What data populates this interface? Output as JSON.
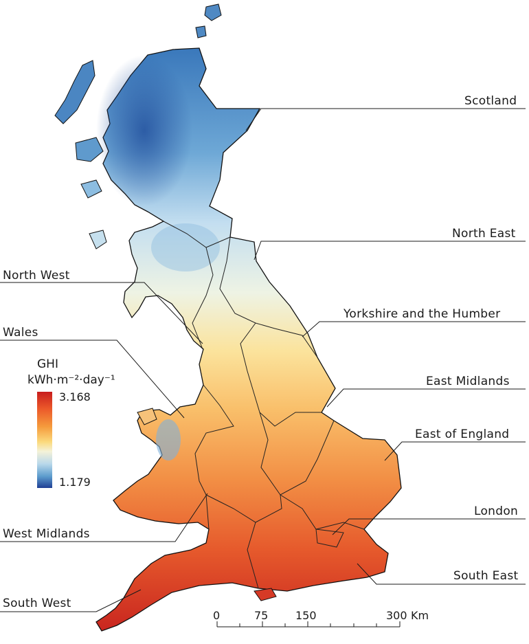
{
  "legend": {
    "title": "GHI",
    "units": "kWh·m⁻²·day⁻¹",
    "max": "3.168",
    "min": "1.179",
    "colors": [
      "#c81d1d",
      "#ec5a2a",
      "#f59a3c",
      "#fbd97c",
      "#f4f2d8",
      "#b9d8ea",
      "#5c9ccd",
      "#1f3f94"
    ]
  },
  "regions": {
    "scotland": "Scotland",
    "north_east": "North East",
    "north_west": "North West",
    "yorkshire": "Yorkshire and the Humber",
    "wales": "Wales",
    "east_midlands": "East Midlands",
    "east_of_england": "East of England",
    "london": "London",
    "west_midlands": "West Midlands",
    "south_east": "South East",
    "south_west": "South West"
  },
  "scale_bar": {
    "ticks": [
      "0",
      "75",
      "150",
      "300"
    ],
    "unit": "Km"
  }
}
